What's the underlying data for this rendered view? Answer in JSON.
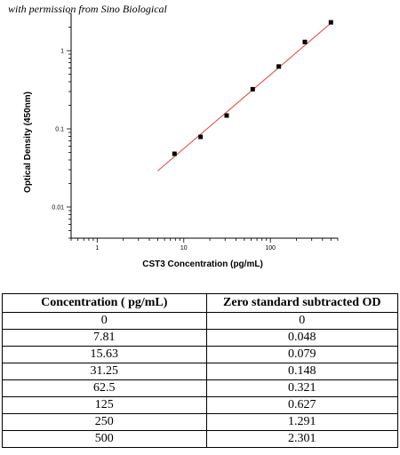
{
  "attribution": "with permission from Sino Biological",
  "chart_data": {
    "type": "scatter",
    "xlabel": "CST3 Concentration (pg/mL)",
    "ylabel": "Optical Density (450nm)",
    "x_scale": "log",
    "y_scale": "log",
    "xlim": [
      0.5,
      600
    ],
    "ylim": [
      0.004,
      3
    ],
    "x_ticks": [
      1,
      10,
      100
    ],
    "x_tick_labels": [
      "1",
      "10",
      "100"
    ],
    "y_ticks": [
      0.01,
      0.1,
      1
    ],
    "y_tick_labels": [
      "0.01",
      "0.1",
      "1"
    ],
    "grid": false,
    "points": {
      "x": [
        7.81,
        15.63,
        31.25,
        62.5,
        125,
        250,
        500
      ],
      "y": [
        0.048,
        0.079,
        0.148,
        0.321,
        0.627,
        1.291,
        2.301
      ]
    },
    "fit_line": {
      "color": "#e8433c",
      "x": [
        5,
        500
      ],
      "y": [
        0.029,
        2.25
      ]
    }
  },
  "table": {
    "headers": [
      "Concentration ( pg/mL)",
      "Zero standard subtracted OD"
    ],
    "rows": [
      [
        "0",
        "0"
      ],
      [
        "7.81",
        "0.048"
      ],
      [
        "15.63",
        "0.079"
      ],
      [
        "31.25",
        "0.148"
      ],
      [
        "62.5",
        "0.321"
      ],
      [
        "125",
        "0.627"
      ],
      [
        "250",
        "1.291"
      ],
      [
        "500",
        "2.301"
      ]
    ]
  }
}
